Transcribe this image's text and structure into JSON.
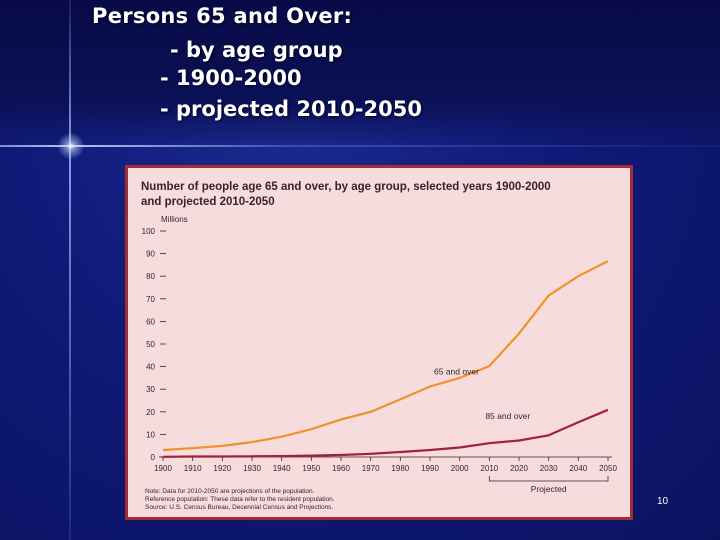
{
  "slide": {
    "title": "Persons 65 and Over:",
    "bullets": [
      "- by age group",
      "- 1900-2000",
      "- projected 2010-2050"
    ],
    "page_number": "10",
    "colors": {
      "background": "#0f1a78",
      "chart_bg": "#f6dcdc",
      "chart_border": "#a52c36"
    }
  },
  "chart_data": {
    "type": "line",
    "title_line1": "Number of people age 65 and over, by age group, selected years 1900-2000",
    "title_line2": "and projected 2010-2050",
    "ylabel": "Millions",
    "xlabel": "",
    "ylim": [
      0,
      100
    ],
    "yticks": [
      0,
      10,
      20,
      30,
      40,
      50,
      60,
      70,
      80,
      90,
      100
    ],
    "x": [
      1900,
      1910,
      1920,
      1930,
      1940,
      1950,
      1960,
      1970,
      1980,
      1990,
      2000,
      2010,
      2020,
      2030,
      2040,
      2050
    ],
    "series": [
      {
        "name": "65 and over",
        "color": "#f0922c",
        "values": [
          3.1,
          3.9,
          4.9,
          6.6,
          9.0,
          12.3,
          16.6,
          20.0,
          25.5,
          31.2,
          35.0,
          40.2,
          54.6,
          71.5,
          80.0,
          86.7
        ]
      },
      {
        "name": "85 and over",
        "color": "#a3203a",
        "values": [
          0.1,
          0.2,
          0.2,
          0.3,
          0.4,
          0.6,
          0.9,
          1.4,
          2.2,
          3.1,
          4.2,
          6.1,
          7.3,
          9.6,
          15.4,
          20.9
        ]
      }
    ],
    "projected_label": "Projected",
    "projected_range": [
      2010,
      2050
    ],
    "notes": [
      "Note: Data for 2010-2050 are projections of the population.",
      "Reference population: These data refer to the resident population.",
      "Source: U.S. Census Bureau, Decennial Census and Projections."
    ]
  }
}
